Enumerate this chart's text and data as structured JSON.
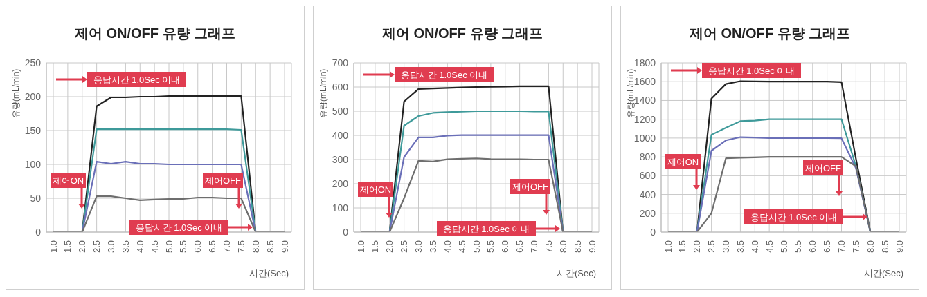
{
  "chart_data": [
    {
      "type": "line",
      "title": "제어 ON/OFF 유량 그래프",
      "xlabel": "시간(Sec)",
      "ylabel": "유량(mL/min)",
      "categories": [
        "1.0",
        "1.5",
        "2.0",
        "2.5",
        "3.0",
        "3.5",
        "4.0",
        "4.5",
        "5.0",
        "5.5",
        "6.0",
        "6.5",
        "7.0",
        "7.5",
        "8.0",
        "8.5",
        "9.0"
      ],
      "ylim": [
        0,
        250
      ],
      "yticks": [
        0,
        50,
        100,
        150,
        200,
        250
      ],
      "grid": true,
      "series": [
        {
          "color": "#222222",
          "values": [
            0,
            0,
            0,
            186,
            199,
            199,
            200,
            200,
            201,
            201,
            201,
            201,
            201,
            201,
            0,
            0,
            0
          ]
        },
        {
          "color": "#3e9a9a",
          "values": [
            0,
            0,
            0,
            152,
            152,
            152,
            152,
            152,
            152,
            152,
            152,
            152,
            152,
            151,
            0,
            0,
            0
          ]
        },
        {
          "color": "#6a6fb8",
          "values": [
            0,
            0,
            0,
            104,
            101,
            104,
            101,
            101,
            100,
            100,
            100,
            100,
            100,
            100,
            0,
            0,
            0
          ]
        },
        {
          "color": "#6e6e6e",
          "values": [
            0,
            0,
            0,
            53,
            53,
            50,
            47,
            48,
            49,
            49,
            51,
            51,
            50,
            50,
            0,
            0,
            0
          ]
        }
      ],
      "annotations": [
        "응답시간 1.0Sec 이내",
        "제어ON",
        "제어OFF",
        "응답시간 1.0Sec 이내"
      ]
    },
    {
      "type": "line",
      "title": "제어 ON/OFF 유량 그래프",
      "xlabel": "시간(Sec)",
      "ylabel": "유량(mL/min)",
      "categories": [
        "1.0",
        "1.5",
        "2.0",
        "2.5",
        "3.0",
        "3.5",
        "4.0",
        "4.5",
        "5.0",
        "5.5",
        "6.0",
        "6.5",
        "7.0",
        "7.5",
        "8.0",
        "8.5",
        "9.0"
      ],
      "ylim": [
        0,
        700
      ],
      "yticks": [
        0,
        100,
        200,
        300,
        400,
        500,
        600,
        700
      ],
      "grid": true,
      "series": [
        {
          "color": "#222222",
          "values": [
            0,
            0,
            0,
            540,
            592,
            594,
            596,
            598,
            600,
            601,
            602,
            603,
            603,
            603,
            0,
            0,
            0
          ]
        },
        {
          "color": "#3e9a9a",
          "values": [
            0,
            0,
            0,
            440,
            480,
            493,
            496,
            498,
            500,
            500,
            500,
            500,
            499,
            499,
            0,
            0,
            0
          ]
        },
        {
          "color": "#6a6fb8",
          "values": [
            0,
            0,
            0,
            310,
            392,
            392,
            399,
            401,
            401,
            401,
            401,
            401,
            401,
            401,
            0,
            0,
            0
          ]
        },
        {
          "color": "#6e6e6e",
          "values": [
            0,
            0,
            0,
            140,
            295,
            292,
            301,
            303,
            305,
            302,
            301,
            301,
            300,
            300,
            0,
            0,
            0
          ]
        }
      ],
      "annotations": [
        "응답시간 1.0Sec 이내",
        "제어ON",
        "제어OFF",
        "응답시간 1.0Sec 이내"
      ]
    },
    {
      "type": "line",
      "title": "제어 ON/OFF 유량 그래프",
      "xlabel": "시간(Sec)",
      "ylabel": "유량(mL/min)",
      "categories": [
        "1.0",
        "1.5",
        "2.0",
        "2.5",
        "3.0",
        "3.5",
        "4.0",
        "4.5",
        "5.0",
        "5.5",
        "6.0",
        "6.5",
        "7.0",
        "7.5",
        "8.0",
        "8.5",
        "9.0"
      ],
      "ylim": [
        0,
        1800
      ],
      "yticks": [
        0,
        200,
        400,
        600,
        800,
        1000,
        1200,
        1400,
        1600,
        1800
      ],
      "grid": true,
      "series": [
        {
          "color": "#222222",
          "values": [
            0,
            0,
            0,
            1420,
            1575,
            1605,
            1603,
            1600,
            1600,
            1600,
            1600,
            1600,
            1595,
            780,
            0,
            0,
            0
          ]
        },
        {
          "color": "#3e9a9a",
          "values": [
            0,
            0,
            0,
            1035,
            1110,
            1180,
            1185,
            1200,
            1200,
            1200,
            1200,
            1200,
            1200,
            700,
            0,
            0,
            0
          ]
        },
        {
          "color": "#6a6fb8",
          "values": [
            0,
            0,
            0,
            865,
            975,
            1010,
            1005,
            1000,
            1000,
            1000,
            1000,
            1000,
            998,
            680,
            0,
            0,
            0
          ]
        },
        {
          "color": "#6e6e6e",
          "values": [
            0,
            0,
            0,
            200,
            785,
            790,
            795,
            800,
            800,
            800,
            800,
            800,
            800,
            700,
            0,
            0,
            0
          ]
        }
      ],
      "annotations": [
        "응답시간 1.0Sec 이내",
        "제어ON",
        "제어OFF",
        "응답시간 1.0Sec 이내"
      ]
    }
  ]
}
